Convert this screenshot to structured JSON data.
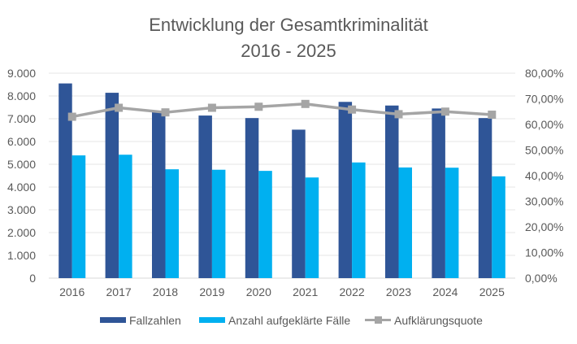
{
  "chart_data": {
    "type": "bar+line",
    "title": [
      "Entwicklung der Gesamtkriminalität",
      "2016 - 2025"
    ],
    "categories": [
      "2016",
      "2017",
      "2018",
      "2019",
      "2020",
      "2021",
      "2022",
      "2023",
      "2024",
      "2025"
    ],
    "series": [
      {
        "name": "Fallzahlen",
        "type": "bar",
        "axis": "left",
        "color": "#2F5597",
        "values": [
          8550,
          8140,
          7300,
          7140,
          7030,
          6520,
          7740,
          7580,
          7450,
          7030
        ]
      },
      {
        "name": "Anzahl aufgeklärte Fälle",
        "type": "bar",
        "axis": "left",
        "color": "#00B0F0",
        "values": [
          5390,
          5420,
          4780,
          4760,
          4710,
          4420,
          5080,
          4860,
          4850,
          4470
        ]
      },
      {
        "name": "Aufklärungsquote",
        "type": "line",
        "axis": "right",
        "color": "#A5A5A5",
        "marker": "square",
        "values": [
          63.0,
          66.5,
          64.7,
          66.5,
          66.9,
          68.0,
          65.8,
          64.0,
          65.0,
          63.8
        ]
      }
    ],
    "left_axis": {
      "ylim": [
        0,
        9000
      ],
      "ticks": [
        "0",
        "1.000",
        "2.000",
        "3.000",
        "4.000",
        "5.000",
        "6.000",
        "7.000",
        "8.000",
        "9.000"
      ]
    },
    "right_axis": {
      "ylim": [
        0,
        80
      ],
      "ticks": [
        "0,00%",
        "10,00%",
        "20,00%",
        "30,00%",
        "40,00%",
        "50,00%",
        "60,00%",
        "70,00%",
        "80,00%"
      ]
    },
    "grid": true,
    "legend_position": "bottom"
  }
}
